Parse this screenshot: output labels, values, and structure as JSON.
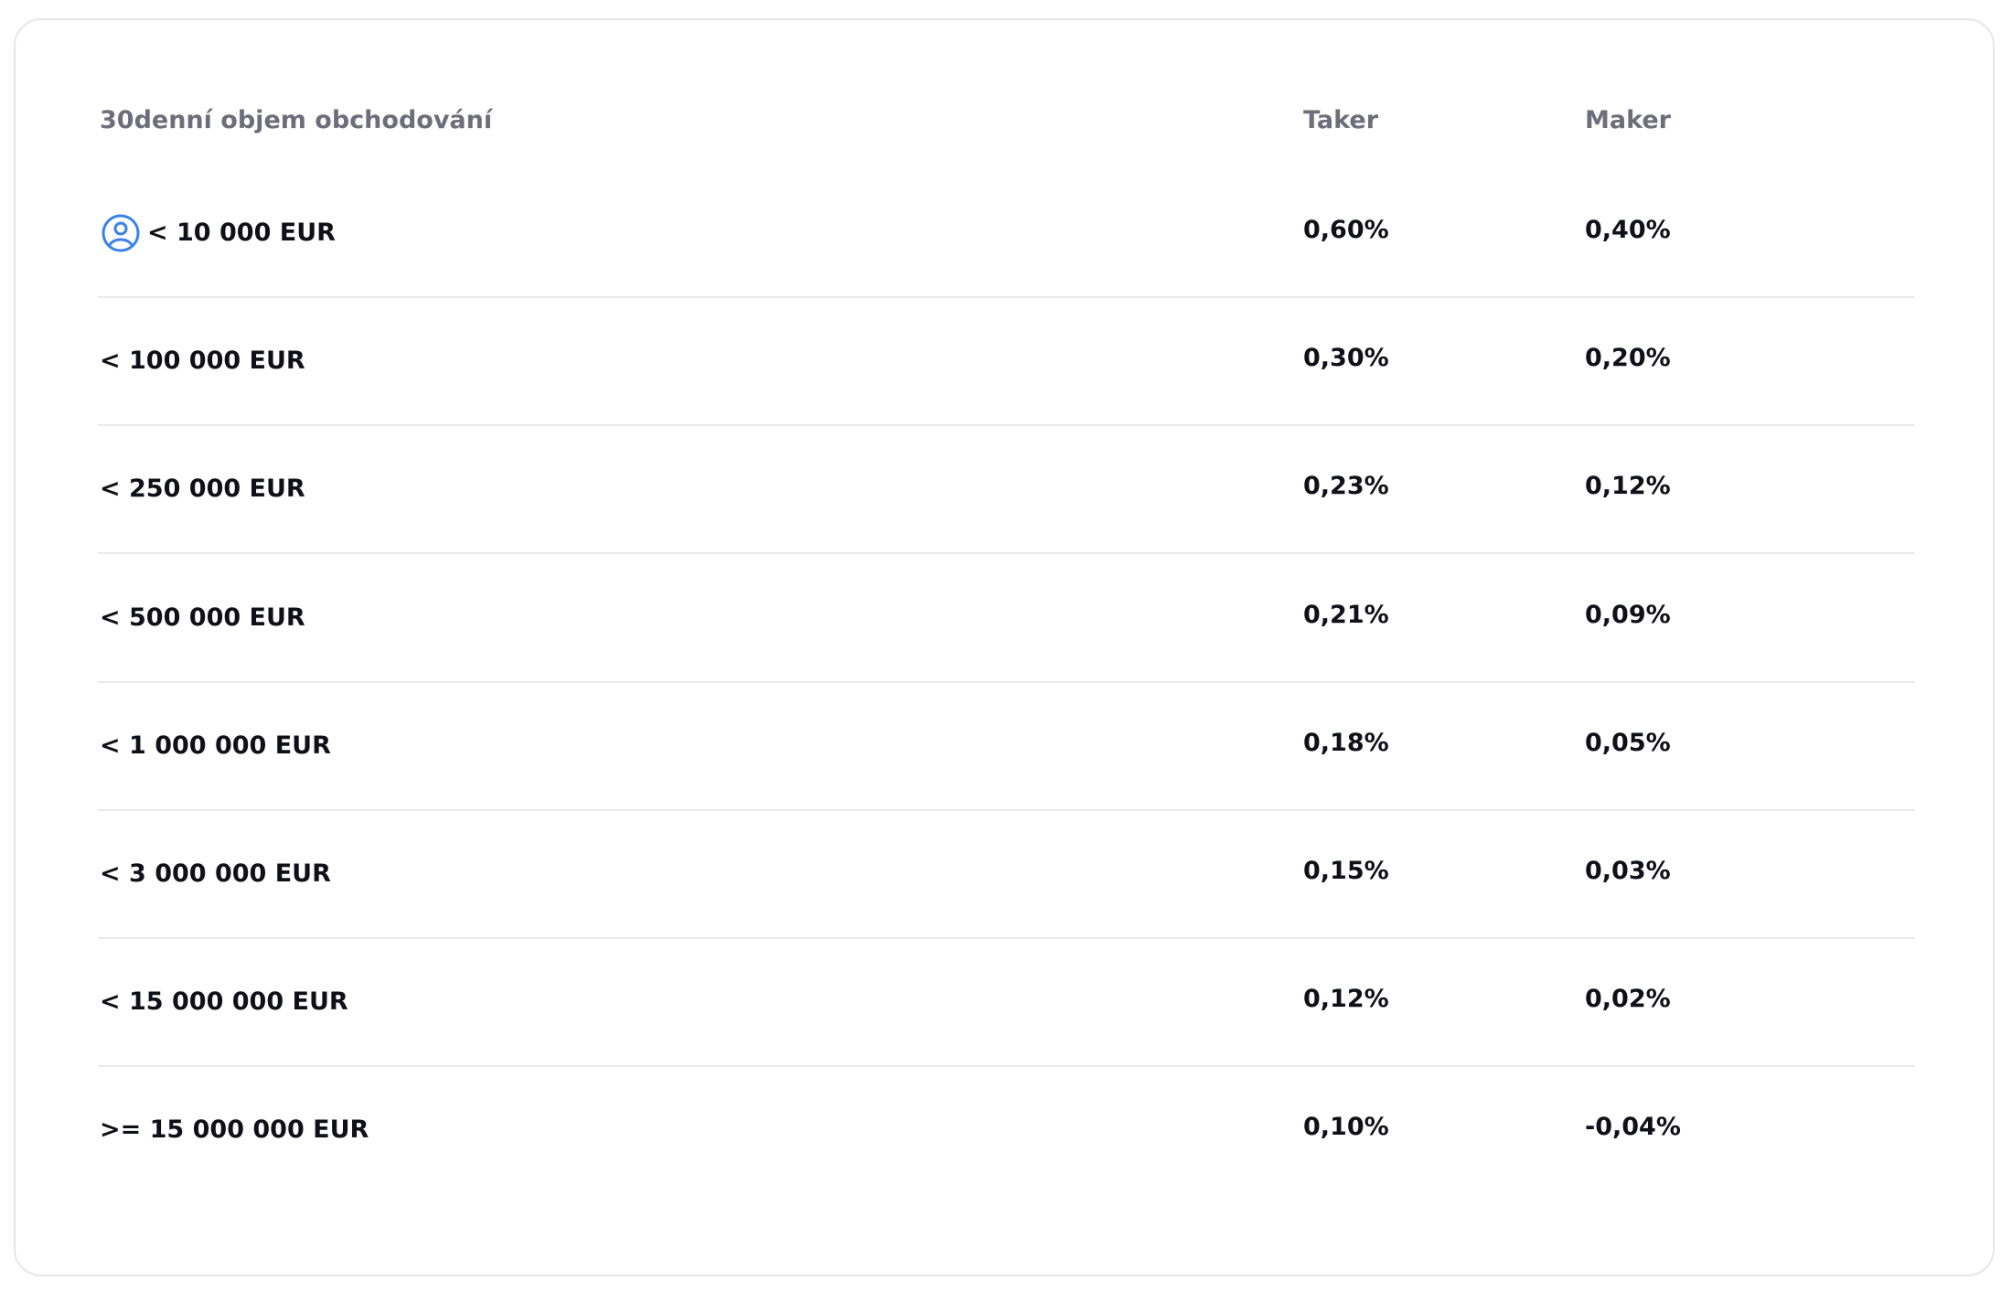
{
  "table": {
    "columns": [
      "30denní objem obchodování",
      "Taker",
      "Maker"
    ],
    "rows": [
      [
        "< 10 000 EUR",
        "0,60%",
        "0,40%"
      ],
      [
        "< 100 000 EUR",
        "0,30%",
        "0,20%"
      ],
      [
        "< 250 000 EUR",
        "0,23%",
        "0,12%"
      ],
      [
        "< 500 000 EUR",
        "0,21%",
        "0,09%"
      ],
      [
        "< 1 000 000 EUR",
        "0,18%",
        "0,05%"
      ],
      [
        "< 3 000 000 EUR",
        "0,15%",
        "0,03%"
      ],
      [
        "< 15 000 000 EUR",
        "0,12%",
        "0,02%"
      ],
      [
        ">= 15 000 000 EUR",
        "0,10%",
        "-0,04%"
      ]
    ]
  }
}
